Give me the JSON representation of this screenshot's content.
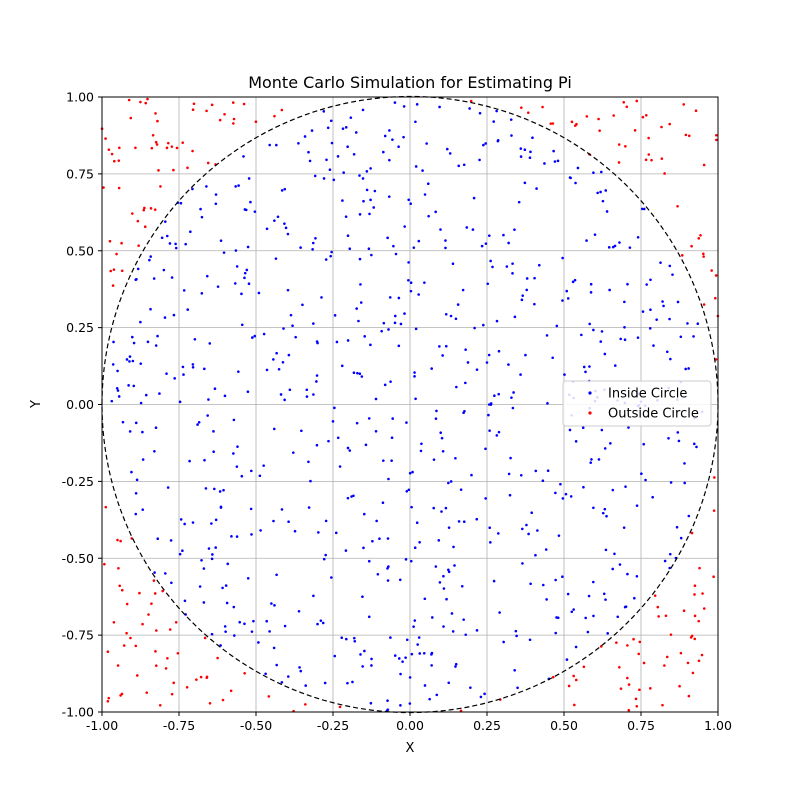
{
  "chart_data": {
    "type": "scatter",
    "title": "Monte Carlo Simulation for Estimating Pi",
    "xlabel": "X",
    "ylabel": "Y",
    "xlim": [
      -1.0,
      1.0
    ],
    "ylim": [
      -1.0,
      1.0
    ],
    "xticks": [
      "-1.00",
      "-0.75",
      "-0.50",
      "-0.25",
      "0.00",
      "0.25",
      "0.50",
      "0.75",
      "1.00"
    ],
    "yticks": [
      "-1.00",
      "-0.75",
      "-0.50",
      "-0.25",
      "0.00",
      "0.25",
      "0.50",
      "0.75",
      "1.00"
    ],
    "grid": true,
    "circle": {
      "center": [
        0,
        0
      ],
      "radius": 1,
      "style": "dashed",
      "color": "#000000"
    },
    "legend_position": "center-right",
    "n_points": 1000,
    "series": [
      {
        "name": "Inside Circle",
        "color": "#0000ff",
        "rule": "x^2 + y^2 <= 1",
        "approx_count": 785
      },
      {
        "name": "Outside Circle",
        "color": "#ff0000",
        "rule": "x^2 + y^2 > 1",
        "approx_count": 215
      }
    ]
  }
}
